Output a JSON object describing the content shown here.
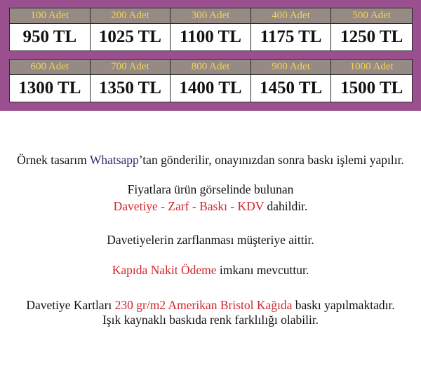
{
  "colors": {
    "band": "#9a4f8e",
    "header_bg": "#958a84",
    "header_text": "#f3d35b",
    "highlight_red": "#d2262c",
    "highlight_blue": "#2e2a6e"
  },
  "prices": [
    [
      {
        "qty": "100 Adet",
        "price": "950 TL"
      },
      {
        "qty": "200 Adet",
        "price": "1025 TL"
      },
      {
        "qty": "300 Adet",
        "price": "1100 TL"
      },
      {
        "qty": "400 Adet",
        "price": "1175 TL"
      },
      {
        "qty": "500 Adet",
        "price": "1250 TL"
      }
    ],
    [
      {
        "qty": "600 Adet",
        "price": "1300 TL"
      },
      {
        "qty": "700 Adet",
        "price": "1350 TL"
      },
      {
        "qty": "800 Adet",
        "price": "1400 TL"
      },
      {
        "qty": "900 Adet",
        "price": "1450 TL"
      },
      {
        "qty": "1000 Adet",
        "price": "1500 TL"
      }
    ]
  ],
  "info": {
    "line1": {
      "a": "Örnek tasarım ",
      "b": "Whatsapp",
      "c": "’tan gönderilir, onayınızdan sonra baskı işlemi yapılır."
    },
    "line2": "Fiyatlara ürün görselinde bulunan",
    "line3": {
      "a": "Davetiye - Zarf - Baskı - KDV",
      "b": " dahildir."
    },
    "line4": "Davetiyelerin zarflanması müşteriye aittir.",
    "line5": {
      "a": "Kapıda Nakit Ödeme",
      "b": " imkanı mevcuttur."
    },
    "line6": {
      "a": "Davetiye Kartları ",
      "b": "230 gr/m2 Amerikan Bristol Kağıda",
      "c": " baskı yapılmaktadır."
    },
    "line7": "Işık kaynaklı baskıda renk farklılığı olabilir."
  }
}
